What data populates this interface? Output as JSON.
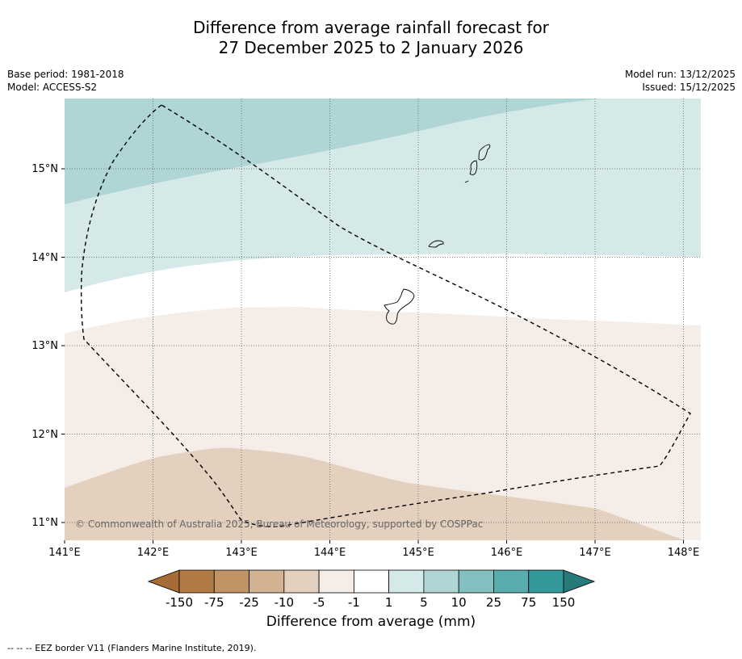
{
  "title": {
    "line1": "Difference from average rainfall forecast for",
    "line2": "27 December 2025 to 2 January 2026"
  },
  "meta_left": {
    "base_period": "Base period: 1981-2018",
    "model": "Model: ACCESS-S2"
  },
  "meta_right": {
    "model_run": "Model run: 13/12/2025",
    "issued": "Issued: 15/12/2025"
  },
  "map": {
    "lon_ticks": [
      "141°E",
      "142°E",
      "143°E",
      "144°E",
      "145°E",
      "146°E",
      "147°E",
      "148°E"
    ],
    "lat_ticks": [
      "15°N",
      "14°N",
      "13°N",
      "12°N",
      "11°N"
    ],
    "copyright": "© Commonwealth of Australia 2025, Bureau of Meteorology, supported by COSPPac"
  },
  "colorbar": {
    "tick_labels": [
      "-150",
      "-75",
      "-25",
      "-10",
      "-5",
      "-1",
      "1",
      "5",
      "10",
      "25",
      "75",
      "150"
    ],
    "colors": [
      "#a56c36",
      "#b07a42",
      "#c19466",
      "#d3b292",
      "#e3d0be",
      "#f5ede7",
      "#ffffff",
      "#d5e9e8",
      "#b0d5d5",
      "#85c0c1",
      "#59adae",
      "#339999",
      "#267a78"
    ],
    "label": "Difference from average (mm)"
  },
  "footnote": "--  --  -- EEZ border V11 (Flanders Marine Institute, 2019)."
}
